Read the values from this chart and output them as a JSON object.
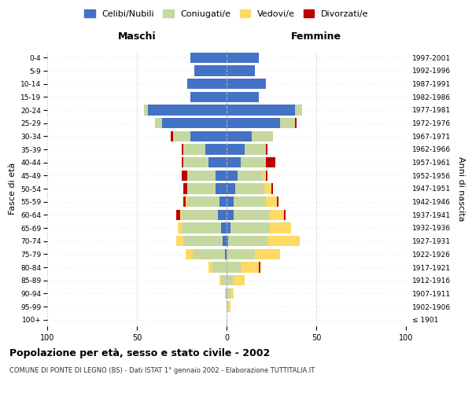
{
  "age_groups": [
    "100+",
    "95-99",
    "90-94",
    "85-89",
    "80-84",
    "75-79",
    "70-74",
    "65-69",
    "60-64",
    "55-59",
    "50-54",
    "45-49",
    "40-44",
    "35-39",
    "30-34",
    "25-29",
    "20-24",
    "15-19",
    "10-14",
    "5-9",
    "0-4"
  ],
  "birth_years": [
    "≤ 1901",
    "1902-1906",
    "1907-1911",
    "1912-1916",
    "1917-1921",
    "1922-1926",
    "1927-1931",
    "1932-1936",
    "1937-1941",
    "1942-1946",
    "1947-1951",
    "1952-1956",
    "1957-1961",
    "1962-1966",
    "1967-1971",
    "1972-1976",
    "1977-1981",
    "1982-1986",
    "1987-1991",
    "1992-1996",
    "1997-2001"
  ],
  "male_celibe": [
    0,
    0,
    0,
    0,
    0,
    1,
    2,
    3,
    5,
    4,
    6,
    6,
    10,
    12,
    20,
    36,
    44,
    20,
    22,
    18,
    20
  ],
  "male_coniugato": [
    0,
    0,
    1,
    3,
    8,
    18,
    22,
    22,
    20,
    18,
    16,
    16,
    14,
    12,
    10,
    4,
    2,
    0,
    0,
    0,
    0
  ],
  "male_vedovo": [
    0,
    0,
    0,
    1,
    2,
    4,
    4,
    2,
    1,
    1,
    0,
    0,
    0,
    0,
    0,
    0,
    0,
    0,
    0,
    0,
    0
  ],
  "male_divorziato": [
    0,
    0,
    0,
    0,
    0,
    0,
    0,
    0,
    2,
    1,
    2,
    3,
    1,
    1,
    1,
    0,
    0,
    0,
    0,
    0,
    0
  ],
  "fem_nubile": [
    0,
    0,
    0,
    0,
    0,
    0,
    1,
    2,
    4,
    4,
    5,
    6,
    8,
    10,
    14,
    30,
    38,
    18,
    22,
    16,
    18
  ],
  "fem_coniugata": [
    0,
    1,
    2,
    4,
    8,
    16,
    22,
    22,
    20,
    18,
    16,
    14,
    14,
    12,
    12,
    8,
    4,
    0,
    0,
    0,
    0
  ],
  "fem_vedova": [
    0,
    1,
    2,
    6,
    10,
    14,
    18,
    12,
    8,
    6,
    4,
    2,
    0,
    0,
    0,
    0,
    0,
    0,
    0,
    0,
    0
  ],
  "fem_divorziata": [
    0,
    0,
    0,
    0,
    1,
    0,
    0,
    0,
    1,
    1,
    1,
    1,
    5,
    1,
    0,
    1,
    0,
    0,
    0,
    0,
    0
  ],
  "colors": {
    "celibe": "#4472C4",
    "coniugato": "#c5d8a0",
    "vedovo": "#FFD966",
    "divorziato": "#C00000"
  },
  "title": "Popolazione per età, sesso e stato civile - 2002",
  "subtitle": "COMUNE DI PONTE DI LEGNO (BS) - Dati ISTAT 1° gennaio 2002 - Elaborazione TUTTITALIA.IT",
  "xlabel_left": "Maschi",
  "xlabel_right": "Femmine",
  "ylabel_left": "Fasce di età",
  "ylabel_right": "Anni di nascita",
  "xlim": 100,
  "bg_color": "#ffffff",
  "grid_color": "#cccccc",
  "legend_labels": [
    "Celibi/Nubili",
    "Coniugati/e",
    "Vedovi/e",
    "Divorzati/e"
  ]
}
